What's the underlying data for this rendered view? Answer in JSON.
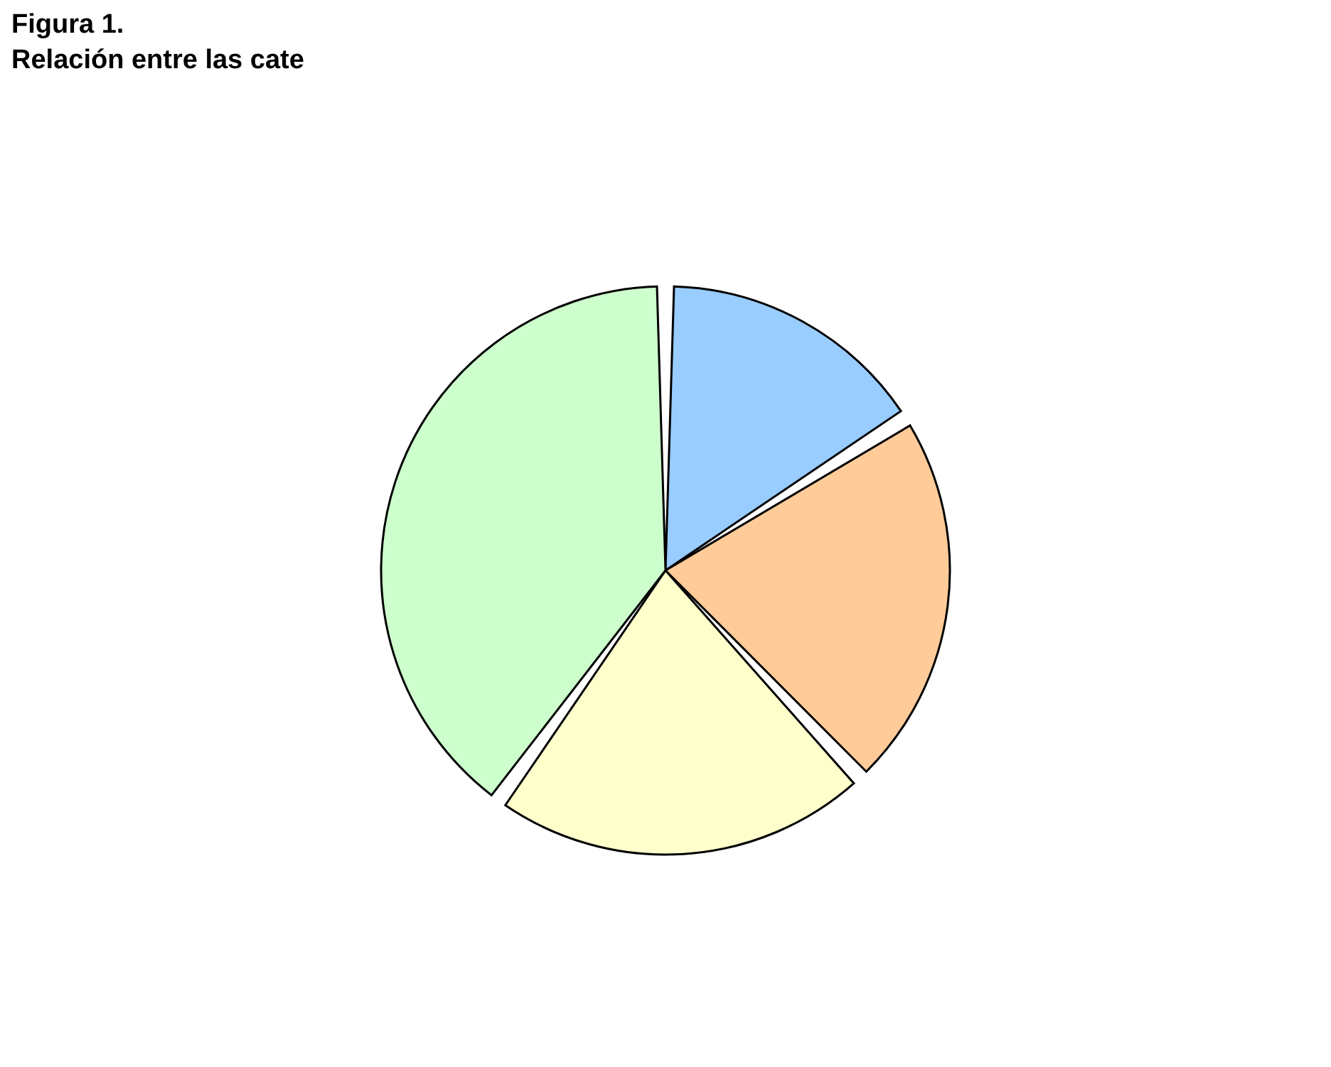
{
  "chart_data": {
    "type": "pie",
    "title": "Figura 1.",
    "subtitle": "Relación entre las cate",
    "categories": [
      null,
      null,
      null,
      null
    ],
    "values": [
      16,
      22,
      22,
      40
    ],
    "colors": [
      "#99ccff",
      "#ffcc99",
      "#ffffcc",
      "#ccffcc"
    ]
  }
}
